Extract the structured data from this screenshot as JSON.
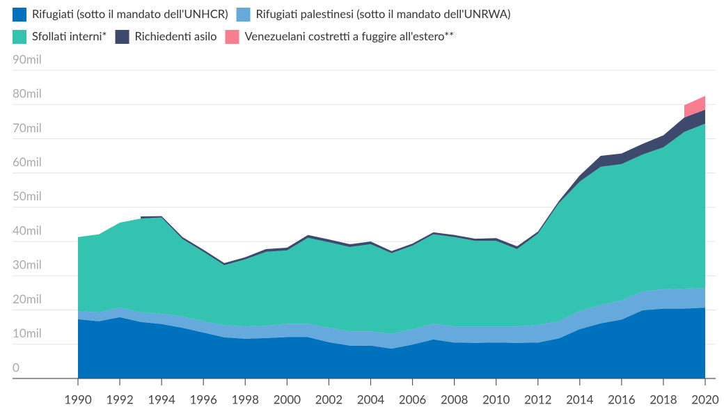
{
  "chart_data": {
    "type": "stacked_area",
    "x": [
      1990,
      1991,
      1992,
      1993,
      1994,
      1995,
      1996,
      1997,
      1998,
      1999,
      2000,
      2001,
      2002,
      2003,
      2004,
      2005,
      2006,
      2007,
      2008,
      2009,
      2010,
      2011,
      2012,
      2013,
      2014,
      2015,
      2016,
      2017,
      2018,
      2019,
      2020
    ],
    "series": [
      {
        "name": "Rifugiati (sotto il mandato dell'UNHCR)",
        "color": "#0071bc",
        "values": [
          17.3,
          16.7,
          17.9,
          16.5,
          15.9,
          14.8,
          13.4,
          12.0,
          11.6,
          11.8,
          12.1,
          12.1,
          10.6,
          9.6,
          9.6,
          8.7,
          9.9,
          11.4,
          10.5,
          10.4,
          10.5,
          10.4,
          10.5,
          11.7,
          14.4,
          16.1,
          17.2,
          19.9,
          20.4,
          20.4,
          20.7
        ]
      },
      {
        "name": "Rifugiati palestinesi (sotto il mandato dell'UNRWA)",
        "color": "#66aadd",
        "values": [
          2.4,
          2.6,
          2.8,
          2.8,
          3.0,
          3.3,
          3.3,
          3.6,
          3.6,
          3.6,
          3.9,
          3.9,
          4.2,
          4.2,
          4.2,
          4.3,
          4.5,
          4.6,
          4.7,
          4.8,
          4.7,
          4.8,
          5.1,
          5.0,
          5.3,
          5.4,
          5.6,
          5.5,
          5.6,
          5.8,
          5.7
        ]
      },
      {
        "name": "Sfollati interni*",
        "color": "#33c3b0",
        "values": [
          21.6,
          22.8,
          24.8,
          27.4,
          28.1,
          22.6,
          20.3,
          17.5,
          19.6,
          21.6,
          21.4,
          25.1,
          25.0,
          24.6,
          25.4,
          23.6,
          24.4,
          26.1,
          26.1,
          25.0,
          25.0,
          22.6,
          26.7,
          34.5,
          37.8,
          40.3,
          39.8,
          40.0,
          41.5,
          45.8,
          48.0
        ]
      },
      {
        "name": "Richiedenti asilo",
        "color": "#3d4a6e",
        "values": [
          null,
          null,
          null,
          0.6,
          0.4,
          0.6,
          0.6,
          0.6,
          0.6,
          0.8,
          0.8,
          0.8,
          0.8,
          0.8,
          0.8,
          0.6,
          0.6,
          0.6,
          0.6,
          0.6,
          0.8,
          0.8,
          0.6,
          0.6,
          1.8,
          3.2,
          3.1,
          3.1,
          3.5,
          4.2,
          4.1
        ]
      },
      {
        "name": "Venezuelani costretti a fuggire all'estero**",
        "color": "#f77d8f",
        "values": [
          null,
          null,
          null,
          null,
          null,
          null,
          null,
          null,
          null,
          null,
          null,
          null,
          null,
          null,
          null,
          null,
          null,
          null,
          null,
          null,
          null,
          null,
          null,
          null,
          null,
          null,
          null,
          null,
          null,
          3.6,
          4.0
        ]
      }
    ],
    "xlim": [
      1990,
      2020
    ],
    "xticks": [
      1990,
      1992,
      1994,
      1996,
      1998,
      2000,
      2002,
      2004,
      2006,
      2008,
      2010,
      2012,
      2014,
      2016,
      2018,
      2020
    ],
    "ylim": [
      0,
      90
    ],
    "yticks": [
      0,
      {
        "value": 10,
        "label": "10mil"
      },
      {
        "value": 20,
        "label": "20mil"
      },
      {
        "value": 30,
        "label": "30mil"
      },
      {
        "value": 40,
        "label": "40mil"
      },
      {
        "value": 50,
        "label": "50mil"
      },
      {
        "value": 60,
        "label": "60mil"
      },
      {
        "value": 70,
        "label": "70mil"
      },
      {
        "value": 80,
        "label": "80mil"
      },
      {
        "value": 90,
        "label": "90mil"
      }
    ],
    "grid": true
  }
}
